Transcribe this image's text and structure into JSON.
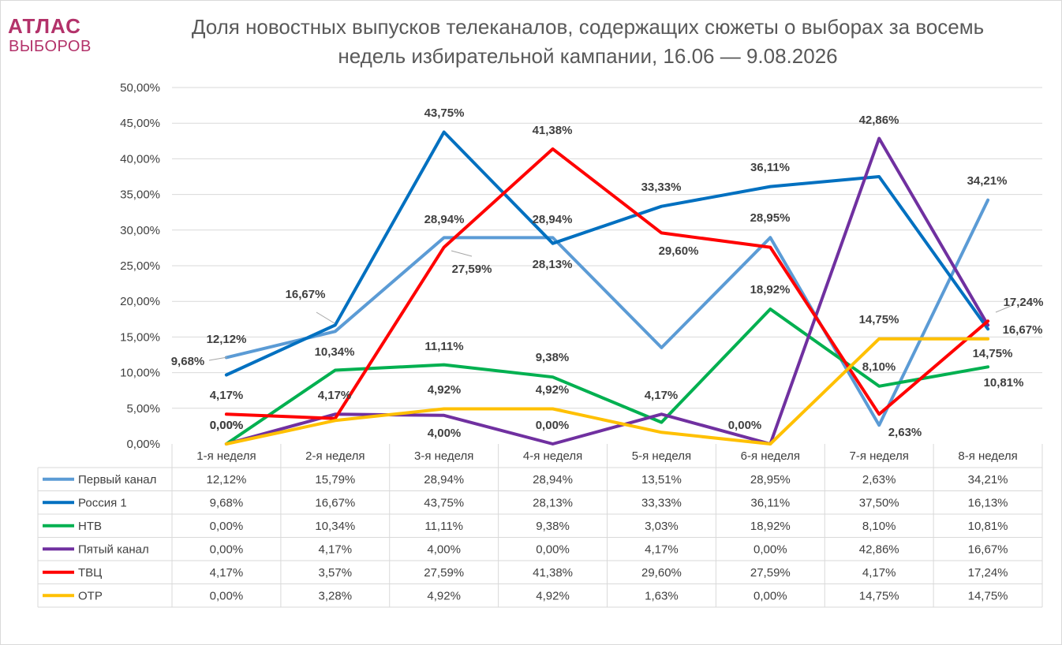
{
  "logo": {
    "top": "АТЛАС",
    "bottom": "ВЫБОРОВ"
  },
  "title_line1": "Доля новостных выпусков телеканалов, содержащих сюжеты о выборах за восемь",
  "title_line2": "недель избирательной кампании, 16.06 — 9.08.2026",
  "chart_data": {
    "type": "line",
    "title": "Доля новостных выпусков телеканалов, содержащих сюжеты о выборах за восемь недель избирательной кампании, 16.06 — 9.08.2026",
    "categories": [
      "1-я неделя",
      "2-я неделя",
      "3-я неделя",
      "4-я неделя",
      "5-я неделя",
      "6-я неделя",
      "7-я неделя",
      "8-я неделя"
    ],
    "ylim": [
      0,
      50
    ],
    "y_ticks": [
      "0,00%",
      "5,00%",
      "10,00%",
      "15,00%",
      "20,00%",
      "25,00%",
      "30,00%",
      "35,00%",
      "40,00%",
      "45,00%",
      "50,00%"
    ],
    "grid": true,
    "legend": "data table below chart",
    "series": [
      {
        "name": "Первый канал",
        "color": "#5b9bd5",
        "values": [
          12.12,
          15.79,
          28.94,
          28.94,
          13.51,
          28.95,
          2.63,
          34.21
        ],
        "labels": [
          "12,12%",
          "15,79%",
          "28,94%",
          "28,94%",
          "13,51%",
          "28,95%",
          "2,63%",
          "34,21%"
        ]
      },
      {
        "name": "Россия 1",
        "color": "#0070c0",
        "values": [
          9.68,
          16.67,
          43.75,
          28.13,
          33.33,
          36.11,
          37.5,
          16.13
        ],
        "labels": [
          "9,68%",
          "16,67%",
          "43,75%",
          "28,13%",
          "33,33%",
          "36,11%",
          "37,50%",
          "16,13%"
        ]
      },
      {
        "name": "НТВ",
        "color": "#00b050",
        "values": [
          0.0,
          10.34,
          11.11,
          9.38,
          3.03,
          18.92,
          8.1,
          10.81
        ],
        "labels": [
          "0,00%",
          "10,34%",
          "11,11%",
          "9,38%",
          "3,03%",
          "18,92%",
          "8,10%",
          "10,81%"
        ]
      },
      {
        "name": "Пятый канал",
        "color": "#7030a0",
        "values": [
          0.0,
          4.17,
          4.0,
          0.0,
          4.17,
          0.0,
          42.86,
          16.67
        ],
        "labels": [
          "0,00%",
          "4,17%",
          "4,00%",
          "0,00%",
          "4,17%",
          "0,00%",
          "42,86%",
          "16,67%"
        ]
      },
      {
        "name": "ТВЦ",
        "color": "#ff0000",
        "values": [
          4.17,
          3.57,
          27.59,
          41.38,
          29.6,
          27.59,
          4.17,
          17.24
        ],
        "labels": [
          "4,17%",
          "3,57%",
          "27,59%",
          "41,38%",
          "29,60%",
          "27,59%",
          "4,17%",
          "17,24%"
        ]
      },
      {
        "name": "ОТР",
        "color": "#ffc000",
        "values": [
          0.0,
          3.28,
          4.92,
          4.92,
          1.63,
          0.0,
          14.75,
          14.75
        ],
        "labels": [
          "0,00%",
          "3,28%",
          "4,92%",
          "4,92%",
          "1,63%",
          "0,00%",
          "14,75%",
          "14,75%"
        ]
      }
    ],
    "data_labels": [
      {
        "text": "12,12%"
      },
      {
        "text": "9,68%"
      },
      {
        "text": "4,17%"
      },
      {
        "text": "0,00%"
      },
      {
        "text": "0,00%"
      },
      {
        "text": "16,67%"
      },
      {
        "text": "10,34%"
      },
      {
        "text": "4,17%"
      },
      {
        "text": "43,75%"
      },
      {
        "text": "28,94%"
      },
      {
        "text": "27,59%"
      },
      {
        "text": "11,11%"
      },
      {
        "text": "4,92%"
      },
      {
        "text": "4,00%"
      },
      {
        "text": "41,38%"
      },
      {
        "text": "28,94%"
      },
      {
        "text": "28,13%"
      },
      {
        "text": "9,38%"
      },
      {
        "text": "4,92%"
      },
      {
        "text": "0,00%"
      },
      {
        "text": "33,33%"
      },
      {
        "text": "29,60%"
      },
      {
        "text": "4,17%"
      },
      {
        "text": "36,11%"
      },
      {
        "text": "28,95%"
      },
      {
        "text": "18,92%"
      },
      {
        "text": "0,00%"
      },
      {
        "text": "42,86%"
      },
      {
        "text": "14,75%"
      },
      {
        "text": "8,10%"
      },
      {
        "text": "2,63%"
      },
      {
        "text": "34,21%"
      },
      {
        "text": "17,24%"
      },
      {
        "text": "16,67%"
      },
      {
        "text": "14,75%"
      },
      {
        "text": "10,81%"
      }
    ]
  }
}
